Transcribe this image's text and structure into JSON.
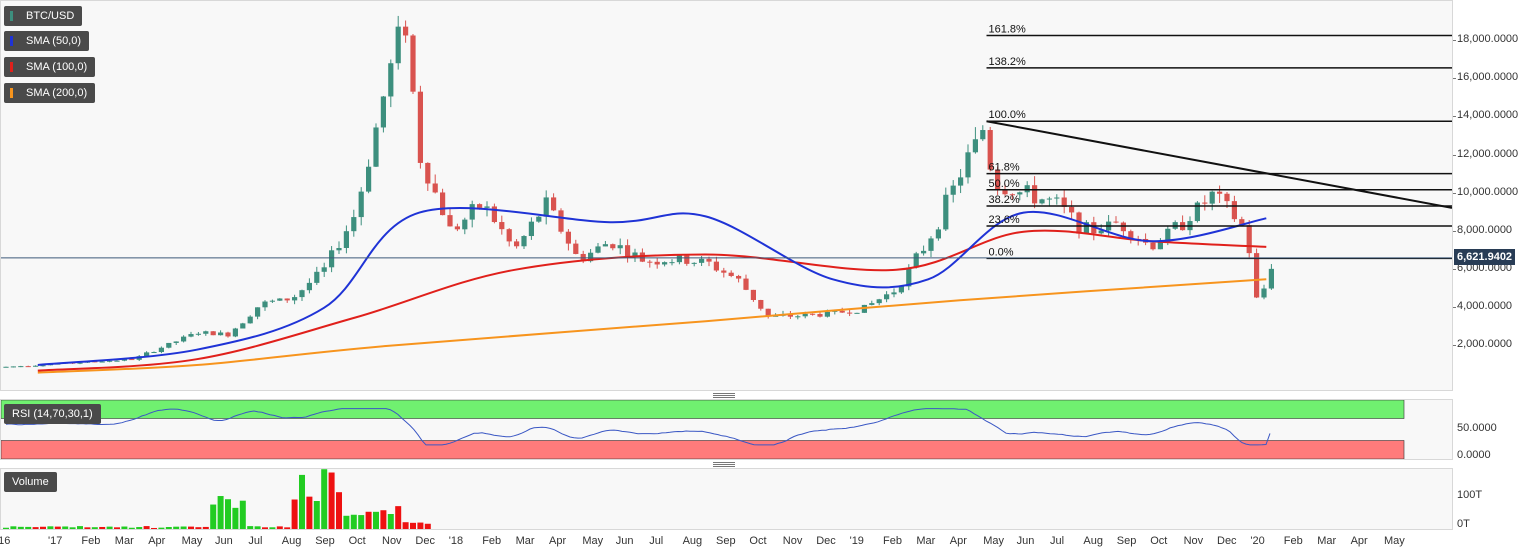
{
  "legends": {
    "symbol": "BTC/USD",
    "sma50": "SMA (50,0)",
    "sma100": "SMA (100,0)",
    "sma200": "SMA (200,0)",
    "rsi": "RSI (14,70,30,1)",
    "volume": "Volume"
  },
  "colors": {
    "up": "#3d8f7e",
    "down": "#d9534f",
    "sma50": "#1f33d6",
    "sma100": "#e0201b",
    "sma200": "#f7941d",
    "rsi_line": "#3a57c4",
    "rsi_overbought": "#70f070",
    "rsi_oversold": "#ff7b7b",
    "vol_up": "#22cc22",
    "vol_down": "#ee1111"
  },
  "current_price_label": "6,621.9402",
  "price_axis": [
    "2,000.0000",
    "4,000.0000",
    "6,000.0000",
    "8,000.0000",
    "10,000.0000",
    "12,000.0000",
    "14,000.0000",
    "16,000.0000",
    "18,000.0000"
  ],
  "rsi_axis": [
    "0.0000",
    "50.0000"
  ],
  "volume_axis": [
    "0T",
    "100T"
  ],
  "time_axis": [
    "'16",
    "'17",
    "Feb",
    "Mar",
    "Apr",
    "May",
    "Jun",
    "Jul",
    "Aug",
    "Sep",
    "Oct",
    "Nov",
    "Dec",
    "'18",
    "Feb",
    "Mar",
    "Apr",
    "May",
    "Jun",
    "Jul",
    "Aug",
    "Sep",
    "Oct",
    "Nov",
    "Dec",
    "'19",
    "Feb",
    "Mar",
    "Apr",
    "May",
    "Jun",
    "Jul",
    "Aug",
    "Sep",
    "Oct",
    "Nov",
    "Dec",
    "'20",
    "Feb",
    "Mar",
    "Apr",
    "May"
  ],
  "fib_levels": [
    {
      "label": "161.8%",
      "price": 18300
    },
    {
      "label": "138.2%",
      "price": 16600
    },
    {
      "label": "100.0%",
      "price": 13800
    },
    {
      "label": "61.8%",
      "price": 11050
    },
    {
      "label": "50.0%",
      "price": 10200
    },
    {
      "label": "38.2%",
      "price": 9350
    },
    {
      "label": "23.6%",
      "price": 8300
    },
    {
      "label": "0.0%",
      "price": 6600
    }
  ],
  "chart_data": {
    "type": "candlestick",
    "title": "BTC/USD",
    "ylim": [
      0,
      19800
    ],
    "anchors": [
      [
        "2016-12",
        900
      ],
      [
        "2017-01",
        1000
      ],
      [
        "2017-02",
        1100
      ],
      [
        "2017-03",
        1200
      ],
      [
        "2017-04",
        1300
      ],
      [
        "2017-05",
        2000
      ],
      [
        "2017-06",
        2700
      ],
      [
        "2017-07",
        2600
      ],
      [
        "2017-08",
        4200
      ],
      [
        "2017-09",
        4500
      ],
      [
        "2017-10",
        6000
      ],
      [
        "2017-11",
        9000
      ],
      [
        "2017-12",
        16000
      ],
      [
        "2017-12-17",
        19500
      ],
      [
        "2018-01",
        12000
      ],
      [
        "2018-02",
        8000
      ],
      [
        "2018-03",
        9500
      ],
      [
        "2018-04",
        7000
      ],
      [
        "2018-05",
        9500
      ],
      [
        "2018-06",
        6500
      ],
      [
        "2018-07",
        7500
      ],
      [
        "2018-08",
        6500
      ],
      [
        "2018-09",
        6500
      ],
      [
        "2018-10",
        6400
      ],
      [
        "2018-11",
        5500
      ],
      [
        "2018-12",
        3500
      ],
      [
        "2019-01",
        3600
      ],
      [
        "2019-02",
        3700
      ],
      [
        "2019-03",
        4000
      ],
      [
        "2019-04",
        5000
      ],
      [
        "2019-05",
        7500
      ],
      [
        "2019-06",
        11000
      ],
      [
        "2019-06-26",
        13800
      ],
      [
        "2019-07",
        10500
      ],
      [
        "2019-08",
        10000
      ],
      [
        "2019-09",
        9500
      ],
      [
        "2019-10",
        8000
      ],
      [
        "2019-11",
        8500
      ],
      [
        "2019-12",
        7200
      ],
      [
        "2020-01",
        8500
      ],
      [
        "2020-02",
        10000
      ],
      [
        "2020-03",
        8000
      ],
      [
        "2020-03-12",
        4000
      ],
      [
        "2020-03-27",
        6622
      ]
    ],
    "last_price": 6621.9402,
    "sma50": [
      [
        1000,
        "2017-01"
      ],
      [
        1800,
        "2017-06"
      ],
      [
        4000,
        "2017-10"
      ],
      [
        9000,
        "2018-01"
      ],
      [
        8500,
        "2018-07"
      ],
      [
        8800,
        "2018-10"
      ],
      [
        5500,
        "2019-02"
      ],
      [
        5500,
        "2019-05"
      ],
      [
        9000,
        "2019-08"
      ],
      [
        7500,
        "2019-12"
      ],
      [
        8700,
        "2020-03-20"
      ]
    ],
    "sma100": [
      [
        700,
        "2017-01"
      ],
      [
        1300,
        "2017-06"
      ],
      [
        3500,
        "2017-11"
      ],
      [
        6000,
        "2018-04"
      ],
      [
        6800,
        "2018-10"
      ],
      [
        6000,
        "2019-04"
      ],
      [
        8000,
        "2019-08"
      ],
      [
        7500,
        "2019-12"
      ],
      [
        7200,
        "2020-03-20"
      ]
    ],
    "sma200": [
      [
        600,
        "2017-01"
      ],
      [
        1000,
        "2017-06"
      ],
      [
        2000,
        "2017-12"
      ],
      [
        3300,
        "2018-10"
      ],
      [
        4400,
        "2019-06"
      ],
      [
        5500,
        "2020-03-20"
      ]
    ],
    "rsi_overbought": 70,
    "rsi_oversold": 30,
    "rsi_last": 43
  }
}
